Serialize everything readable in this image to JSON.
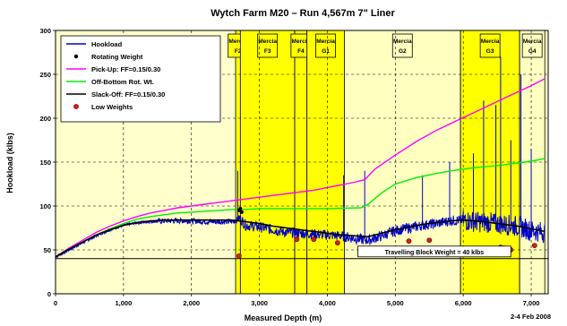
{
  "chart_data": {
    "type": "line",
    "title": "Wytch Farm M20 – Run 4,567m 7\" Liner",
    "xlabel": "Measured Depth (m)",
    "ylabel": "Hookload (klbs)",
    "xlim": [
      0,
      7250
    ],
    "ylim": [
      0,
      300
    ],
    "x_ticks": [
      0,
      1000,
      2000,
      3000,
      4000,
      5000,
      6000,
      7000
    ],
    "x_tick_labels": [
      "0",
      "1,000",
      "2,000",
      "3,000",
      "4,000",
      "5,000",
      "6,000",
      "7,000"
    ],
    "y_ticks": [
      0,
      50,
      100,
      150,
      200,
      250,
      300
    ],
    "y_tick_labels": [
      "0",
      "50",
      "100",
      "150",
      "200",
      "250",
      "300"
    ],
    "grid": true,
    "legend_position": "top-left",
    "date_note": "2-4 Feb 2008",
    "annotation": "Travelling Block Weight = 40 klbs",
    "block_weight": 40,
    "zones": [
      {
        "label": "Mercia F2",
        "start": 2650,
        "end": 2720,
        "color": "#ffff00"
      },
      {
        "label": "Mercia F3",
        "start": 2720,
        "end": 3520,
        "color": "#ffff00"
      },
      {
        "label": "Mercia F4",
        "start": 3520,
        "end": 3700,
        "color": "#ffff00"
      },
      {
        "label": "Mercia G1",
        "start": 3700,
        "end": 4250,
        "color": "#ffff00"
      },
      {
        "label": "Mercia G2",
        "start": 4250,
        "end": 5960,
        "color": "#ffffc0"
      },
      {
        "label": "Mercia G3",
        "start": 5960,
        "end": 6830,
        "color": "#ffff00"
      },
      {
        "label": "Mercia G4",
        "start": 6830,
        "end": 7200,
        "color": "#ffffc0"
      }
    ],
    "series": [
      {
        "name": "Hookload",
        "color": "#0000cc",
        "x": [
          0,
          200,
          400,
          600,
          800,
          1000,
          1200,
          1400,
          1600,
          1800,
          2000,
          2200,
          2400,
          2600,
          2650,
          2700,
          2800,
          3000,
          3200,
          3400,
          3600,
          3800,
          4000,
          4200,
          4400,
          4600,
          4800,
          5000,
          5200,
          5400,
          5600,
          5800,
          6000,
          6200,
          6400,
          6600,
          6800,
          7000,
          7200
        ],
        "y": [
          42,
          50,
          58,
          66,
          73,
          78,
          81,
          82,
          83,
          83,
          83,
          82,
          82,
          82,
          83,
          87,
          78,
          76,
          73,
          70,
          69,
          68,
          67,
          66,
          63,
          61,
          66,
          72,
          75,
          78,
          80,
          83,
          84,
          82,
          81,
          79,
          77,
          72,
          70
        ]
      },
      {
        "name": "Rotating Weight",
        "color": "#000000",
        "x": [
          2700,
          2720,
          2740
        ],
        "y": [
          95,
          97,
          93
        ]
      },
      {
        "name": "Pick-Up: FF=0.15/0.30",
        "color": "#ff00ff",
        "x": [
          0,
          200,
          400,
          600,
          800,
          1000,
          1200,
          1400,
          1600,
          1800,
          2000,
          2200,
          2400,
          2600,
          2800,
          3000,
          3200,
          3400,
          3600,
          3800,
          4000,
          4200,
          4400,
          4550,
          4700,
          5000,
          5300,
          5600,
          5900,
          6200,
          6500,
          6800,
          7000,
          7200
        ],
        "y": [
          42,
          52,
          61,
          70,
          77,
          83,
          88,
          92,
          95,
          98,
          100,
          102,
          104,
          106,
          108,
          110,
          112,
          114,
          116,
          118,
          121,
          124,
          127,
          130,
          142,
          158,
          173,
          186,
          197,
          208,
          219,
          230,
          237,
          245
        ]
      },
      {
        "name": "Off-Bottom Rot. Wt.",
        "color": "#00ee00",
        "x": [
          0,
          200,
          400,
          600,
          800,
          1000,
          1200,
          1400,
          1600,
          1800,
          2000,
          2200,
          2400,
          2600,
          2800,
          3000,
          3500,
          4000,
          4500,
          4600,
          4800,
          5000,
          5300,
          5600,
          5900,
          6200,
          6500,
          6800,
          7000,
          7200
        ],
        "y": [
          42,
          51,
          59,
          67,
          74,
          80,
          85,
          88,
          90,
          92,
          93,
          94,
          95,
          96,
          96,
          97,
          97,
          97,
          98,
          102,
          115,
          125,
          132,
          137,
          141,
          144,
          146,
          149,
          151,
          154
        ]
      },
      {
        "name": "Slack-Off: FF=0.15/0.30",
        "color": "#000000",
        "x": [
          0,
          200,
          400,
          600,
          800,
          1000,
          1200,
          1400,
          1600,
          1800,
          2000,
          2200,
          2400,
          2600,
          2800,
          3000,
          3200,
          3400,
          3600,
          3800,
          4000,
          4200,
          4400,
          4600,
          4800,
          5000,
          5200,
          5400,
          5600,
          5800,
          6000,
          6200,
          6400,
          6600,
          6800,
          7000,
          7200
        ],
        "y": [
          42,
          51,
          59,
          67,
          73,
          78,
          81,
          83,
          84,
          84,
          84,
          84,
          84,
          84,
          82,
          80,
          77,
          75,
          73,
          71,
          69,
          67,
          66,
          65,
          69,
          73,
          76,
          79,
          81,
          83,
          84,
          83,
          81,
          79,
          77,
          74,
          71
        ]
      },
      {
        "name": "Low Weights",
        "color": "#cc0000",
        "x": [
          2700,
          3550,
          3800,
          4150,
          5200,
          5500,
          6100,
          6200,
          6550,
          6580,
          6600,
          6700,
          7050
        ],
        "y": [
          43,
          62,
          62,
          58,
          60,
          61,
          50,
          50,
          53,
          45,
          52,
          50,
          55
        ]
      }
    ],
    "spikes": [
      {
        "x": 2680,
        "y": 140
      },
      {
        "x": 4550,
        "y": 140
      },
      {
        "x": 4240,
        "y": 135
      },
      {
        "x": 6300,
        "y": 220
      },
      {
        "x": 6550,
        "y": 270
      },
      {
        "x": 6480,
        "y": 215
      },
      {
        "x": 6850,
        "y": 250
      },
      {
        "x": 5400,
        "y": 135
      },
      {
        "x": 6700,
        "y": 175
      },
      {
        "x": 7000,
        "y": 165
      },
      {
        "x": 5800,
        "y": 150
      },
      {
        "x": 6150,
        "y": 160
      }
    ]
  }
}
